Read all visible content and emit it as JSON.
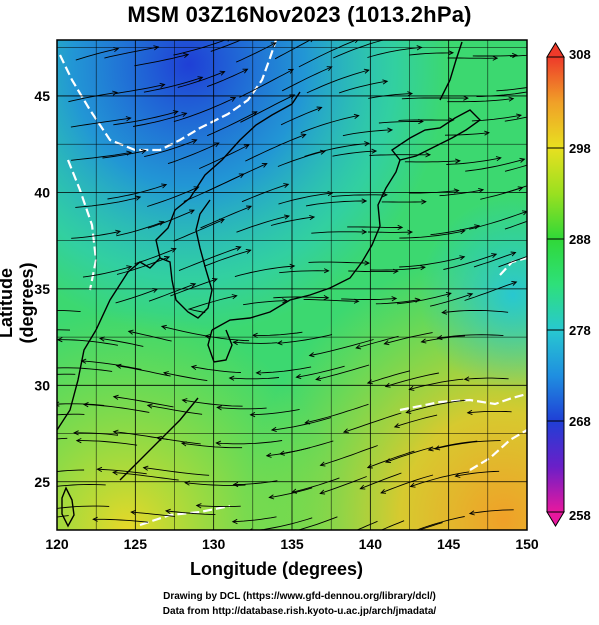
{
  "title": "MSM 03Z16Nov2023 (1013.2hPa)",
  "axes": {
    "x_label": "Longitude (degrees)",
    "y_label": "Latitude  (degrees)",
    "x_ticks": [
      "120",
      "125",
      "130",
      "135",
      "140",
      "145",
      "150"
    ],
    "y_ticks": [
      "25",
      "30",
      "35",
      "40",
      "45"
    ],
    "x_range": [
      120,
      150
    ],
    "y_range": [
      22.5,
      47.9
    ]
  },
  "colorbar": {
    "ticks": [
      "308",
      "298",
      "288",
      "278",
      "268",
      "258"
    ],
    "range": [
      258,
      308
    ],
    "colors": [
      "#e8189e",
      "#6a1fc8",
      "#1f3fd6",
      "#1f8fe0",
      "#28c8d0",
      "#2ee07a",
      "#30d838",
      "#9ae020",
      "#e8e020",
      "#f0a028",
      "#ee3a2a"
    ]
  },
  "credits": {
    "line1": "Drawing by DCL (https://www.gfd-dennou.org/library/dcl/)",
    "line2": "Data from http://database.rish.kyoto-u.ac.jp/arch/jmadata/"
  }
}
